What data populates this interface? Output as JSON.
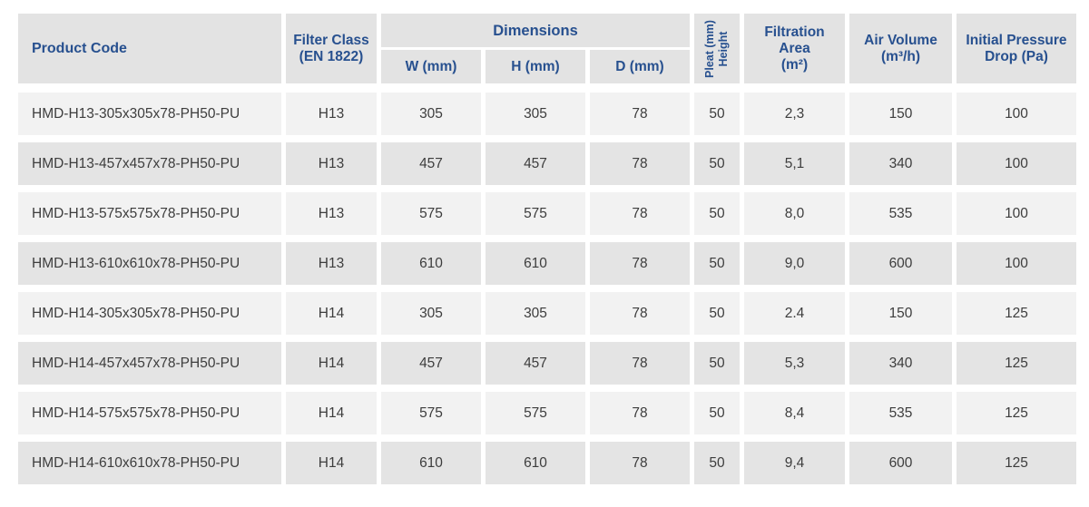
{
  "colors": {
    "header_text_blue": "#27508f",
    "header_cell_bg": "#e3e3e3",
    "row_odd_bg": "#f2f2f2",
    "row_even_bg": "#e4e4e4",
    "data_text": "#3d3d3d",
    "page_bg": "#ffffff"
  },
  "table": {
    "header": {
      "product_code": "Product Code",
      "filter_class_line1": "Filter Class",
      "filter_class_line2": "(EN 1822)",
      "dimensions": "Dimensions",
      "w": "W (mm)",
      "h": "H (mm)",
      "d": "D (mm)",
      "pleat_line1": "Pleat (mm)",
      "pleat_line2": "Height",
      "filtration_line1": "Filtration",
      "filtration_line2": "Area",
      "filtration_line3": "(m²)",
      "air_volume_line1": "Air Volume",
      "air_volume_line2": "(m³/h)",
      "pressure_line1": "Initial Pressure",
      "pressure_line2": "Drop (Pa)"
    },
    "rows": [
      {
        "product_code": "HMD-H13-305x305x78-PH50-PU",
        "filter_class": "H13",
        "w": "305",
        "h": "305",
        "d": "78",
        "pleat": "50",
        "filtration_area": "2,3",
        "air_volume": "150",
        "pressure_drop": "100"
      },
      {
        "product_code": "HMD-H13-457x457x78-PH50-PU",
        "filter_class": "H13",
        "w": "457",
        "h": "457",
        "d": "78",
        "pleat": "50",
        "filtration_area": "5,1",
        "air_volume": "340",
        "pressure_drop": "100"
      },
      {
        "product_code": "HMD-H13-575x575x78-PH50-PU",
        "filter_class": "H13",
        "w": "575",
        "h": "575",
        "d": "78",
        "pleat": "50",
        "filtration_area": "8,0",
        "air_volume": "535",
        "pressure_drop": "100"
      },
      {
        "product_code": "HMD-H13-610x610x78-PH50-PU",
        "filter_class": "H13",
        "w": "610",
        "h": "610",
        "d": "78",
        "pleat": "50",
        "filtration_area": "9,0",
        "air_volume": "600",
        "pressure_drop": "100"
      },
      {
        "product_code": "HMD-H14-305x305x78-PH50-PU",
        "filter_class": "H14",
        "w": "305",
        "h": "305",
        "d": "78",
        "pleat": "50",
        "filtration_area": "2.4",
        "air_volume": "150",
        "pressure_drop": "125"
      },
      {
        "product_code": "HMD-H14-457x457x78-PH50-PU",
        "filter_class": "H14",
        "w": "457",
        "h": "457",
        "d": "78",
        "pleat": "50",
        "filtration_area": "5,3",
        "air_volume": "340",
        "pressure_drop": "125"
      },
      {
        "product_code": "HMD-H14-575x575x78-PH50-PU",
        "filter_class": "H14",
        "w": "575",
        "h": "575",
        "d": "78",
        "pleat": "50",
        "filtration_area": "8,4",
        "air_volume": "535",
        "pressure_drop": "125"
      },
      {
        "product_code": "HMD-H14-610x610x78-PH50-PU",
        "filter_class": "H14",
        "w": "610",
        "h": "610",
        "d": "78",
        "pleat": "50",
        "filtration_area": "9,4",
        "air_volume": "600",
        "pressure_drop": "125"
      }
    ]
  }
}
